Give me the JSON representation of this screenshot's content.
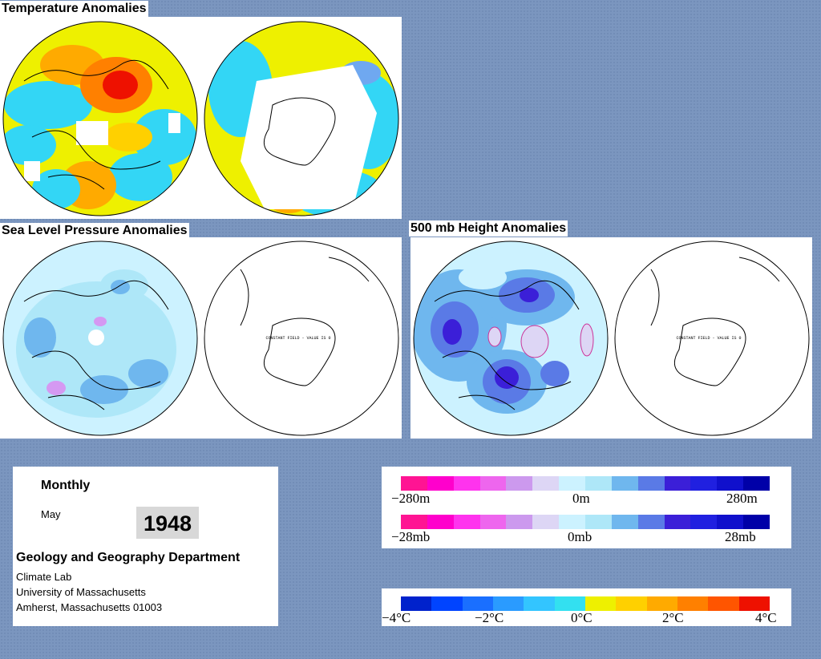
{
  "titles": {
    "temperature": "Temperature Anomalies",
    "slp": "Sea Level Pressure Anomalies",
    "height500": "500 mb Height Anomalies"
  },
  "maps": {
    "constant_field_note": "CONSTANT FIELD - VALUE IS 0"
  },
  "info": {
    "period": "Monthly",
    "month": "May",
    "year": "1948",
    "department": "Geology and Geography Department",
    "lab": "Climate Lab",
    "university": "University of Massachusetts",
    "address": "Amherst, Massachusetts 01003"
  },
  "legends": {
    "height": {
      "min": "−280m",
      "mid": "0m",
      "max": "280m"
    },
    "pressure": {
      "min": "−28mb",
      "mid": "0mb",
      "max": "28mb"
    },
    "temperature": {
      "ticks": [
        "−4°C",
        "−2°C",
        "0°C",
        "2°C",
        "4°C"
      ]
    }
  },
  "colors": {
    "height_pressure_scale": [
      "#ff1493",
      "#ff00cc",
      "#ff33ee",
      "#ee66ee",
      "#cc99ee",
      "#ddd6f5",
      "#ccf2ff",
      "#aee7f8",
      "#6fb7ee",
      "#5a7ae6",
      "#3b1fd8",
      "#2020e0",
      "#1010cc",
      "#0000a8"
    ],
    "temperature_scale": [
      "#0022cc",
      "#0044ff",
      "#1a6fff",
      "#2a9bff",
      "#33c5ff",
      "#33e0f0",
      "#eef000",
      "#ffd000",
      "#ffaa00",
      "#ff8000",
      "#ff5500",
      "#ee1100"
    ],
    "accent_panel": "#ffffff",
    "background": "#7b96bf"
  }
}
